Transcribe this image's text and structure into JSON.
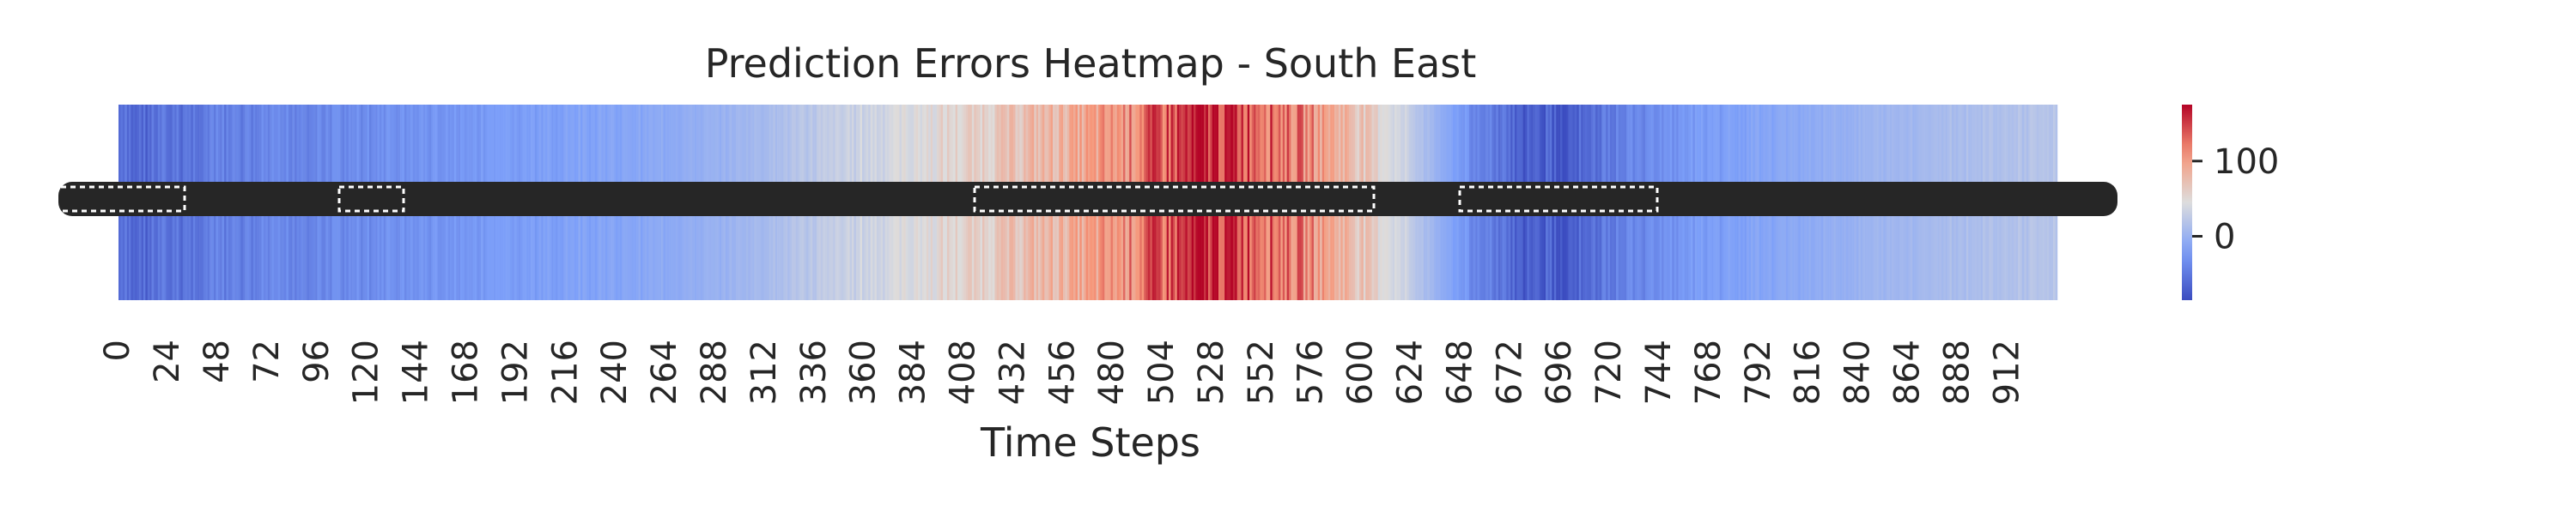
{
  "chart_data": {
    "type": "heatmap",
    "title": "Prediction Errors Heatmap - South East",
    "xlabel": "Time Steps",
    "ylabel": "",
    "n_steps": 936,
    "x_ticks": [
      0,
      24,
      48,
      72,
      96,
      120,
      144,
      168,
      192,
      216,
      240,
      264,
      288,
      312,
      336,
      360,
      384,
      408,
      432,
      456,
      480,
      504,
      528,
      552,
      576,
      600,
      624,
      648,
      672,
      696,
      720,
      744,
      768,
      792,
      816,
      840,
      864,
      888,
      912
    ],
    "colorbar": {
      "ticks": [
        0,
        100
      ],
      "vmin": -85,
      "vmax": 175,
      "colormap": "coolwarm"
    },
    "cell_annotations": true,
    "value_profile": [
      {
        "step": 0,
        "value": -62
      },
      {
        "step": 20,
        "value": -58
      },
      {
        "step": 48,
        "value": -46
      },
      {
        "step": 96,
        "value": -38
      },
      {
        "step": 144,
        "value": -30
      },
      {
        "step": 192,
        "value": -22
      },
      {
        "step": 240,
        "value": -14
      },
      {
        "step": 288,
        "value": -2
      },
      {
        "step": 312,
        "value": 10
      },
      {
        "step": 360,
        "value": 35
      },
      {
        "step": 408,
        "value": 55
      },
      {
        "step": 456,
        "value": 85
      },
      {
        "step": 480,
        "value": 105
      },
      {
        "step": 504,
        "value": 140
      },
      {
        "step": 528,
        "value": 160
      },
      {
        "step": 552,
        "value": 140
      },
      {
        "step": 576,
        "value": 110
      },
      {
        "step": 600,
        "value": 70
      },
      {
        "step": 624,
        "value": 25
      },
      {
        "step": 648,
        "value": -25
      },
      {
        "step": 672,
        "value": -65
      },
      {
        "step": 696,
        "value": -72
      },
      {
        "step": 720,
        "value": -48
      },
      {
        "step": 744,
        "value": -30
      },
      {
        "step": 792,
        "value": -14
      },
      {
        "step": 840,
        "value": 0
      },
      {
        "step": 888,
        "value": 12
      },
      {
        "step": 935,
        "value": 18
      }
    ]
  }
}
